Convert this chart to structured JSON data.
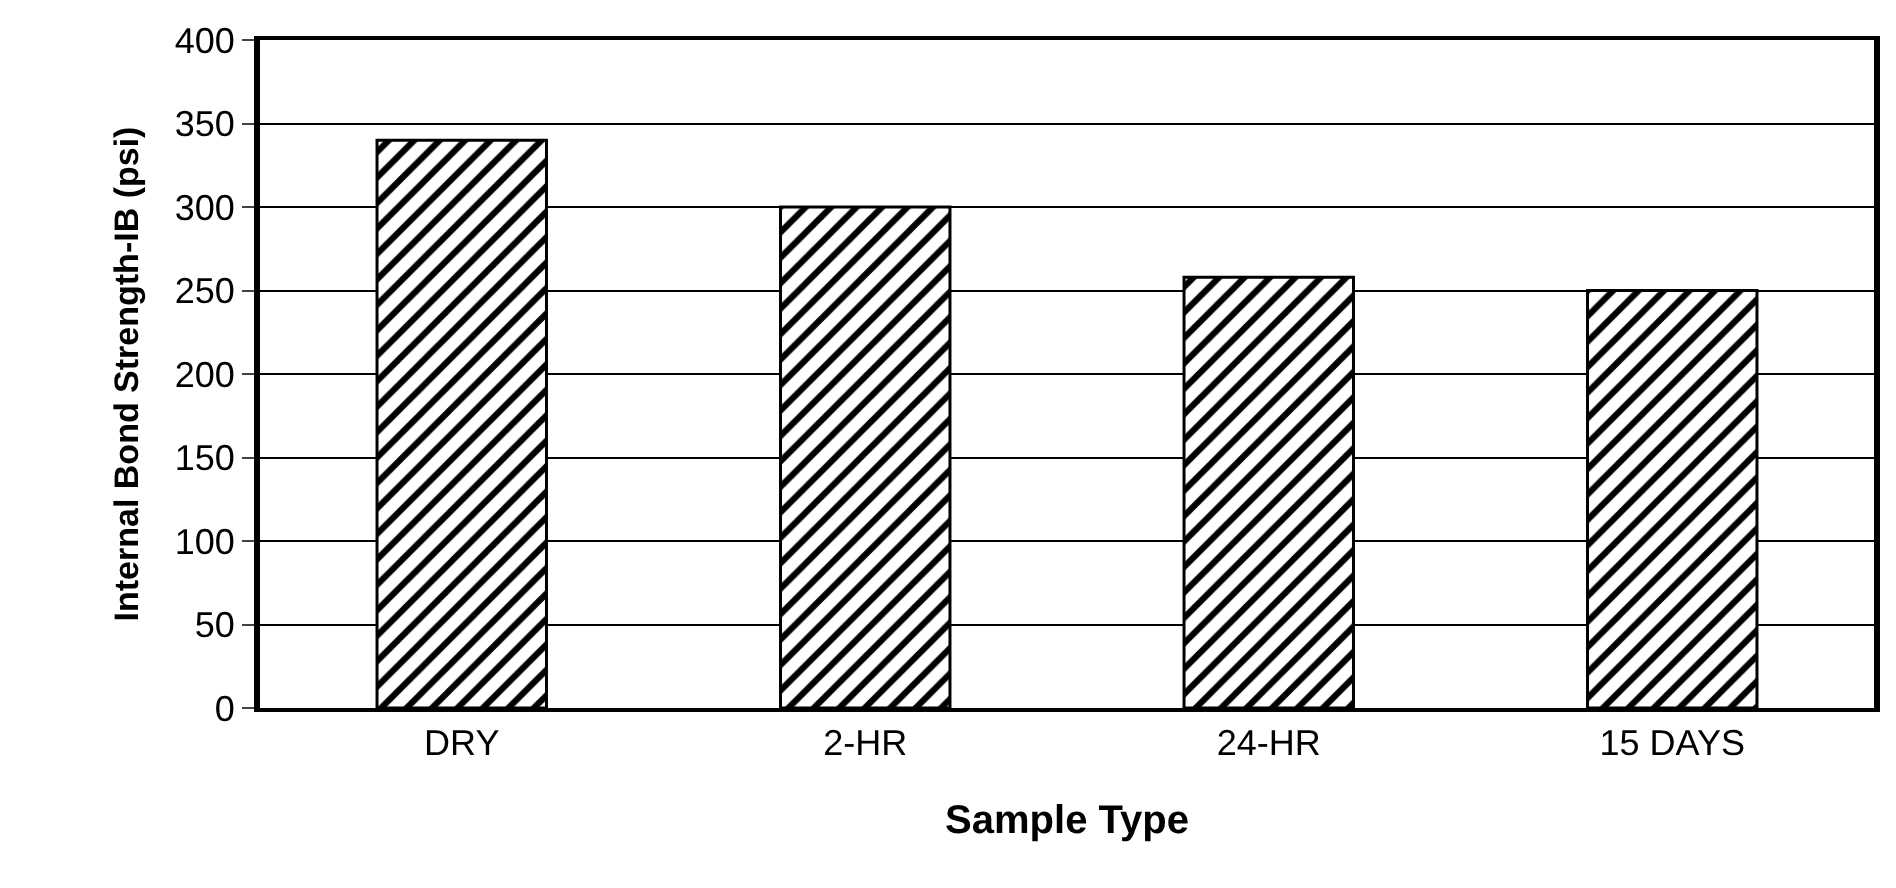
{
  "chart_data": {
    "type": "bar",
    "xlabel": "Sample Type",
    "ylabel": "Internal Bond Strength-IB (psi)",
    "categories": [
      "DRY",
      "2-HR",
      "24-HR",
      "15 DAYS"
    ],
    "values": [
      340,
      300,
      258,
      250
    ],
    "color": "#000000",
    "ylim": [
      0,
      400
    ],
    "yticks": [
      0,
      50,
      100,
      150,
      200,
      250,
      300,
      350,
      400
    ],
    "grid": "y"
  }
}
